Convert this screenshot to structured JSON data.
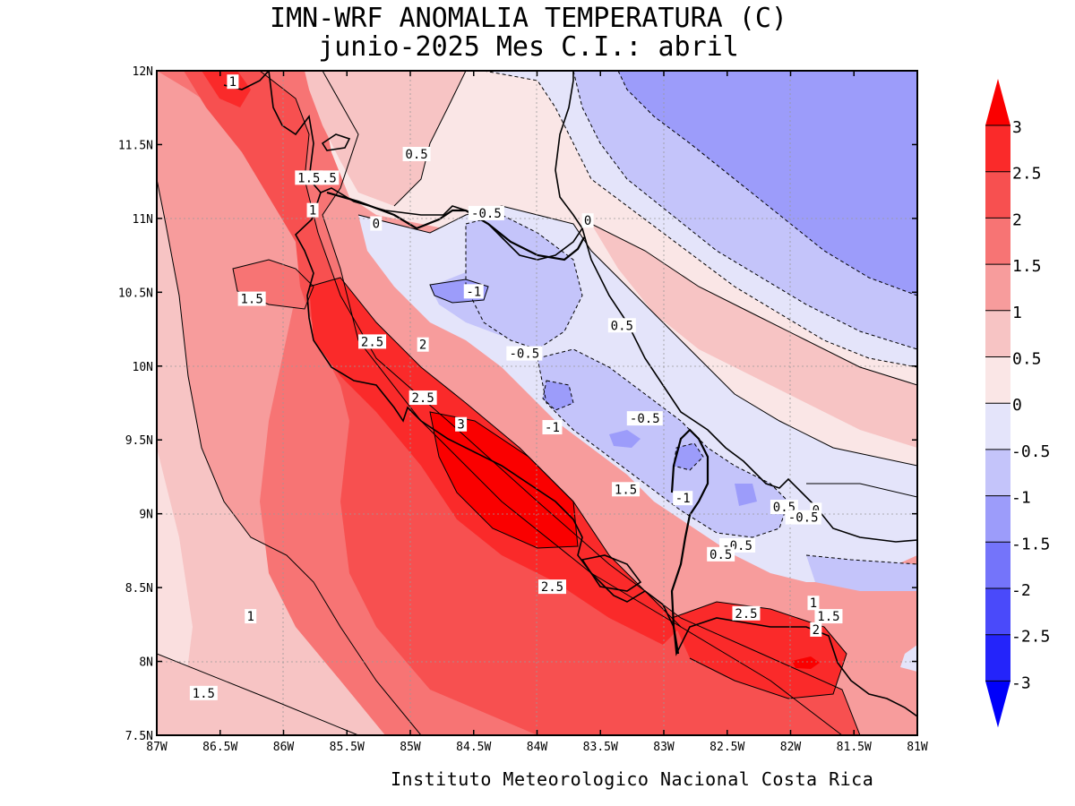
{
  "title": {
    "line1": "IMN-WRF  ANOMALIA TEMPERATURA (C)",
    "line2": "junio-2025 Mes C.I.: abril"
  },
  "footer": "Instituto Meteorologico Nacional Costa Rica",
  "map": {
    "lon_range": [
      -87,
      -81
    ],
    "lat_range": [
      7.5,
      12
    ],
    "lon_ticks": [
      {
        "value": -87,
        "label": "87W"
      },
      {
        "value": -86.5,
        "label": "86.5W"
      },
      {
        "value": -86,
        "label": "86W"
      },
      {
        "value": -85.5,
        "label": "85.5W"
      },
      {
        "value": -85,
        "label": "85W"
      },
      {
        "value": -84.5,
        "label": "84.5W"
      },
      {
        "value": -84,
        "label": "84W"
      },
      {
        "value": -83.5,
        "label": "83.5W"
      },
      {
        "value": -83,
        "label": "83W"
      },
      {
        "value": -82.5,
        "label": "82.5W"
      },
      {
        "value": -82,
        "label": "82W"
      },
      {
        "value": -81.5,
        "label": "81.5W"
      },
      {
        "value": -81,
        "label": "81W"
      }
    ],
    "lat_ticks": [
      {
        "value": 12,
        "label": "12N"
      },
      {
        "value": 11.5,
        "label": "11.5N"
      },
      {
        "value": 11,
        "label": "11N"
      },
      {
        "value": 10.5,
        "label": "10.5N"
      },
      {
        "value": 10,
        "label": "10N"
      },
      {
        "value": 9.5,
        "label": "9.5N"
      },
      {
        "value": 9,
        "label": "9N"
      },
      {
        "value": 8.5,
        "label": "8.5N"
      },
      {
        "value": 8,
        "label": "8N"
      },
      {
        "value": 7.5,
        "label": "7.5N"
      }
    ],
    "contour_labels": [
      {
        "text": "1",
        "lon": -86.4,
        "lat": 11.92
      },
      {
        "text": "0.5",
        "lon": -84.95,
        "lat": 11.43
      },
      {
        "text": "1.5",
        "lon": -85.8,
        "lat": 11.27
      },
      {
        "text": ".5",
        "lon": -85.64,
        "lat": 11.27
      },
      {
        "text": "1",
        "lon": -85.77,
        "lat": 11.05
      },
      {
        "text": "0",
        "lon": -85.27,
        "lat": 10.96
      },
      {
        "text": "-0.5",
        "lon": -84.4,
        "lat": 11.03
      },
      {
        "text": "0",
        "lon": -83.6,
        "lat": 10.98
      },
      {
        "text": "1.5",
        "lon": -86.25,
        "lat": 10.45
      },
      {
        "text": "-1",
        "lon": -84.5,
        "lat": 10.5
      },
      {
        "text": "0.5",
        "lon": -83.33,
        "lat": 10.27
      },
      {
        "text": "2.5",
        "lon": -85.3,
        "lat": 10.16
      },
      {
        "text": "2",
        "lon": -84.9,
        "lat": 10.14
      },
      {
        "text": "-0.5",
        "lon": -84.1,
        "lat": 10.08
      },
      {
        "text": "2.5",
        "lon": -84.9,
        "lat": 9.78
      },
      {
        "text": "3",
        "lon": -84.6,
        "lat": 9.6
      },
      {
        "text": "-1",
        "lon": -83.88,
        "lat": 9.58
      },
      {
        "text": "-0.5",
        "lon": -83.15,
        "lat": 9.64
      },
      {
        "text": "1.5",
        "lon": -83.3,
        "lat": 9.16
      },
      {
        "text": "-1",
        "lon": -82.85,
        "lat": 9.1
      },
      {
        "text": "0.5",
        "lon": -82.05,
        "lat": 9.04
      },
      {
        "text": "0",
        "lon": -81.8,
        "lat": 9.02
      },
      {
        "text": "-0.5",
        "lon": -81.9,
        "lat": 8.97
      },
      {
        "text": "-0.5",
        "lon": -82.42,
        "lat": 8.78
      },
      {
        "text": "0.5",
        "lon": -82.55,
        "lat": 8.72
      },
      {
        "text": "2.5",
        "lon": -83.88,
        "lat": 8.5
      },
      {
        "text": "1",
        "lon": -81.82,
        "lat": 8.39
      },
      {
        "text": "1",
        "lon": -86.26,
        "lat": 8.3
      },
      {
        "text": "2.5",
        "lon": -82.35,
        "lat": 8.32
      },
      {
        "text": "1.5",
        "lon": -81.7,
        "lat": 8.3
      },
      {
        "text": "2",
        "lon": -81.8,
        "lat": 8.21
      },
      {
        "text": "1.5",
        "lon": -86.63,
        "lat": 7.78
      }
    ]
  },
  "colorbar": {
    "levels": [
      "3",
      "2.5",
      "2",
      "1.5",
      "1",
      "0.5",
      "0",
      "-0.5",
      "-1",
      "-1.5",
      "-2",
      "-2.5",
      "-3"
    ],
    "colors": [
      "#fa0000",
      "#fa2a2a",
      "#f75050",
      "#f77474",
      "#f79c9c",
      "#f7c4c4",
      "#fae6e6",
      "#e4e4fa",
      "#c4c4fa",
      "#9c9cfa",
      "#7474fa",
      "#4a4afa",
      "#2424fa",
      "#0000fa"
    ]
  }
}
